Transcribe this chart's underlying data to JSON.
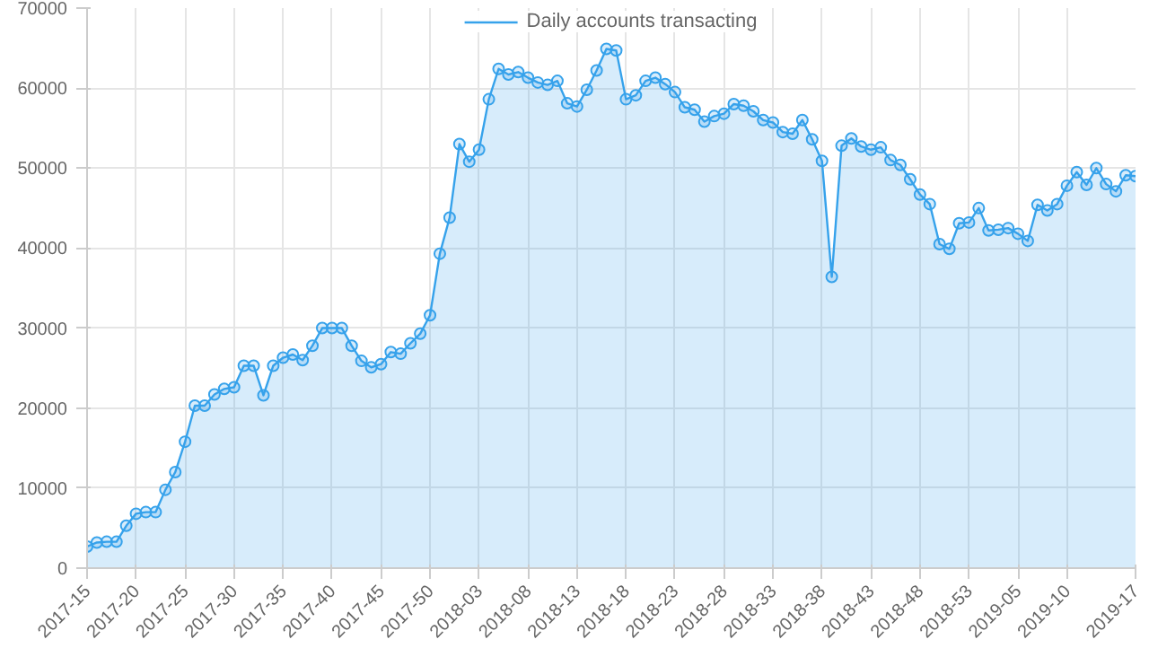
{
  "chart_data": {
    "type": "area",
    "categories": [
      "2017-15",
      null,
      null,
      null,
      null,
      "2017-20",
      null,
      null,
      null,
      null,
      "2017-25",
      null,
      null,
      null,
      null,
      "2017-30",
      null,
      null,
      null,
      null,
      "2017-35",
      null,
      null,
      null,
      null,
      "2017-40",
      null,
      null,
      null,
      null,
      "2017-45",
      null,
      null,
      null,
      null,
      "2017-50",
      null,
      null,
      null,
      null,
      "2018-03",
      null,
      null,
      null,
      null,
      "2018-08",
      null,
      null,
      null,
      null,
      "2018-13",
      null,
      null,
      null,
      null,
      "2018-18",
      null,
      null,
      null,
      null,
      "2018-23",
      null,
      null,
      null,
      null,
      "2018-28",
      null,
      null,
      null,
      null,
      "2018-33",
      null,
      null,
      null,
      null,
      "2018-38",
      null,
      null,
      null,
      null,
      "2018-43",
      null,
      null,
      null,
      null,
      "2018-48",
      null,
      null,
      null,
      null,
      "2018-53",
      null,
      null,
      null,
      null,
      "2019-05",
      null,
      null,
      null,
      null,
      "2019-10",
      null,
      null,
      null,
      null,
      null,
      null,
      "2019-17"
    ],
    "series": [
      {
        "name": "Daily accounts transacting",
        "color": "#36a2eb",
        "values": [
          2700,
          3200,
          3300,
          3300,
          5300,
          6800,
          7000,
          7000,
          9800,
          12000,
          15800,
          20300,
          20300,
          21700,
          22400,
          22600,
          25300,
          25300,
          21600,
          25300,
          26300,
          26700,
          26000,
          27800,
          30000,
          30000,
          30000,
          27800,
          25900,
          25100,
          25500,
          27000,
          26800,
          28100,
          29300,
          31600,
          39300,
          43800,
          53000,
          50800,
          52300,
          58600,
          62400,
          61700,
          62000,
          61300,
          60700,
          60400,
          60900,
          58100,
          57700,
          59800,
          62200,
          64900,
          64700,
          58600,
          59100,
          60900,
          61300,
          60500,
          59500,
          57600,
          57300,
          55800,
          56500,
          56800,
          58000,
          57800,
          57100,
          56000,
          55700,
          54500,
          54300,
          56000,
          53600,
          50900,
          36400,
          52800,
          53700,
          52700,
          52300,
          52600,
          51000,
          50400,
          48600,
          46700,
          45500,
          40500,
          39900,
          43100,
          43200,
          45000,
          42200,
          42300,
          42500,
          41800,
          40900,
          45400,
          44700,
          45500,
          47800,
          49500,
          47900,
          50000,
          48000,
          47100,
          49100,
          49000
        ]
      }
    ],
    "ylim": [
      0,
      70000
    ],
    "yticks": [
      0,
      10000,
      20000,
      30000,
      40000,
      50000,
      60000,
      70000
    ],
    "grid": true,
    "legend": "top",
    "marker": "circle"
  }
}
